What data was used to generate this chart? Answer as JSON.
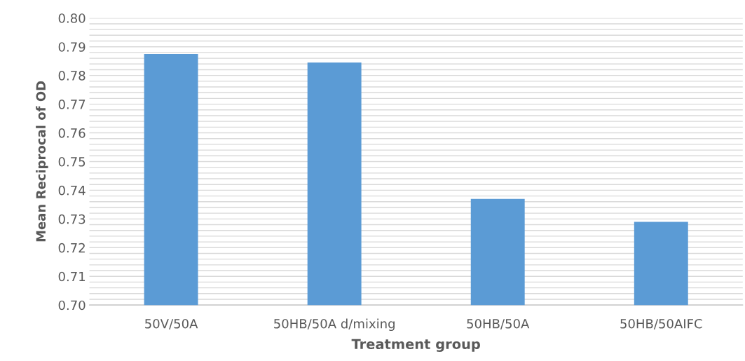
{
  "chart_data": {
    "type": "bar",
    "xlabel": "Treatment group",
    "ylabel": "Mean Reciprocal of OD",
    "categories": [
      "50V/50A",
      "50HB/50A d/mixing",
      "50HB/50A",
      "50HB/50AIFC"
    ],
    "values": [
      0.7875,
      0.7845,
      0.737,
      0.729
    ],
    "color": "#5b9bd5",
    "ylim": [
      0.7,
      0.8
    ],
    "yticks": [
      {
        "value": 0.7,
        "label": "0.70"
      },
      {
        "value": 0.702,
        "label": null
      },
      {
        "value": 0.704,
        "label": null
      },
      {
        "value": 0.706,
        "label": null
      },
      {
        "value": 0.708,
        "label": null
      },
      {
        "value": 0.71,
        "label": "0.71"
      },
      {
        "value": 0.712,
        "label": null
      },
      {
        "value": 0.714,
        "label": null
      },
      {
        "value": 0.716,
        "label": null
      },
      {
        "value": 0.718,
        "label": null
      },
      {
        "value": 0.72,
        "label": "0.72"
      },
      {
        "value": 0.722,
        "label": null
      },
      {
        "value": 0.724,
        "label": null
      },
      {
        "value": 0.726,
        "label": null
      },
      {
        "value": 0.728,
        "label": null
      },
      {
        "value": 0.73,
        "label": "0.73"
      },
      {
        "value": 0.732,
        "label": null
      },
      {
        "value": 0.734,
        "label": null
      },
      {
        "value": 0.736,
        "label": null
      },
      {
        "value": 0.738,
        "label": null
      },
      {
        "value": 0.74,
        "label": "0.74"
      },
      {
        "value": 0.742,
        "label": null
      },
      {
        "value": 0.744,
        "label": null
      },
      {
        "value": 0.746,
        "label": null
      },
      {
        "value": 0.748,
        "label": null
      },
      {
        "value": 0.75,
        "label": "0.75"
      },
      {
        "value": 0.752,
        "label": null
      },
      {
        "value": 0.754,
        "label": null
      },
      {
        "value": 0.756,
        "label": null
      },
      {
        "value": 0.758,
        "label": null
      },
      {
        "value": 0.76,
        "label": "0.76"
      },
      {
        "value": 0.762,
        "label": null
      },
      {
        "value": 0.764,
        "label": null
      },
      {
        "value": 0.766,
        "label": null
      },
      {
        "value": 0.768,
        "label": null
      },
      {
        "value": 0.77,
        "label": "0.77"
      },
      {
        "value": 0.772,
        "label": null
      },
      {
        "value": 0.774,
        "label": null
      },
      {
        "value": 0.776,
        "label": null
      },
      {
        "value": 0.778,
        "label": null
      },
      {
        "value": 0.78,
        "label": "0.78"
      },
      {
        "value": 0.782,
        "label": null
      },
      {
        "value": 0.784,
        "label": null
      },
      {
        "value": 0.786,
        "label": null
      },
      {
        "value": 0.788,
        "label": null
      },
      {
        "value": 0.79,
        "label": "0.79"
      },
      {
        "value": 0.792,
        "label": null
      },
      {
        "value": 0.794,
        "label": null
      },
      {
        "value": 0.796,
        "label": null
      },
      {
        "value": 0.798,
        "label": null
      },
      {
        "value": 0.8,
        "label": "0.80"
      }
    ],
    "grid": "y"
  }
}
